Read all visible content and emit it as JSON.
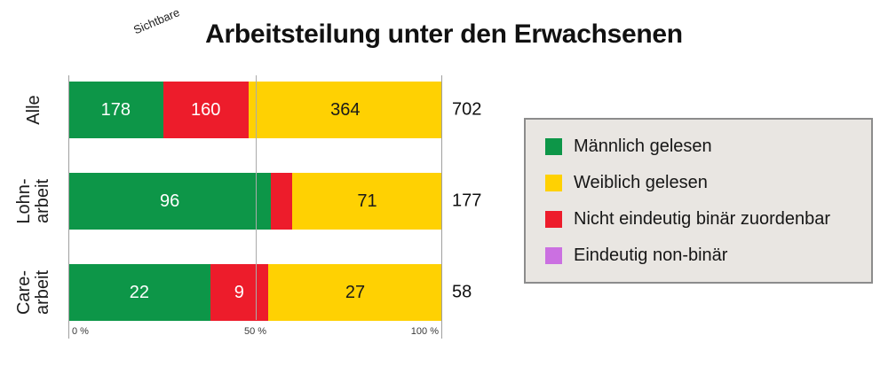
{
  "chart_data": {
    "type": "bar",
    "stacked": true,
    "orientation": "horizontal",
    "title": "Arbeitsteilung unter den Erwachsenen",
    "annotation": "Sichtbare",
    "x_axis": {
      "ticks": [
        "0 %",
        "50 %",
        "100 %"
      ],
      "range_percent": [
        0,
        100
      ],
      "note": "segment widths are percent of row total"
    },
    "categories": [
      "Alle",
      "Lohn-\narbeit",
      "Care-\narbeit"
    ],
    "rows": [
      {
        "category": "Alle",
        "total": 702,
        "segments": [
          {
            "name": "Männlich gelesen",
            "value": 178,
            "label": "178"
          },
          {
            "name": "Nicht eindeutig binär zuordenbar",
            "value": 160,
            "label": "160"
          },
          {
            "name": "Weiblich gelesen",
            "value": 364,
            "label": "364"
          }
        ]
      },
      {
        "category": "Lohn-\narbeit",
        "total": 177,
        "segments": [
          {
            "name": "Männlich gelesen",
            "value": 96,
            "label": "96"
          },
          {
            "name": "Nicht eindeutig binär zuordenbar",
            "value": 10,
            "label": ""
          },
          {
            "name": "Weiblich gelesen",
            "value": 71,
            "label": "71"
          }
        ]
      },
      {
        "category": "Care-\narbeit",
        "total": 58,
        "segments": [
          {
            "name": "Männlich gelesen",
            "value": 22,
            "label": "22"
          },
          {
            "name": "Nicht eindeutig binär zuordenbar",
            "value": 9,
            "label": "9"
          },
          {
            "name": "Weiblich gelesen",
            "value": 27,
            "label": "27"
          }
        ]
      }
    ],
    "colors": {
      "Männlich gelesen": "#0d9648",
      "Weiblich gelesen": "#ffd102",
      "Nicht eindeutig binär zuordenbar": "#ed1c2b",
      "Eindeutig non-binär": "#cb70e1"
    },
    "segment_label_text_colors": {
      "Männlich gelesen": "#ffffff",
      "Nicht eindeutig binär zuordenbar": "#ffffff",
      "Weiblich gelesen": "#1a1a1a"
    },
    "legend": [
      {
        "label": "Männlich gelesen",
        "color": "#0d9648"
      },
      {
        "label": "Weiblich gelesen",
        "color": "#ffd102"
      },
      {
        "label": "Nicht eindeutig binär zuordenbar",
        "color": "#ed1c2b"
      },
      {
        "label": "Eindeutig non-binär",
        "color": "#cb70e1"
      }
    ],
    "legend_position": "right"
  }
}
